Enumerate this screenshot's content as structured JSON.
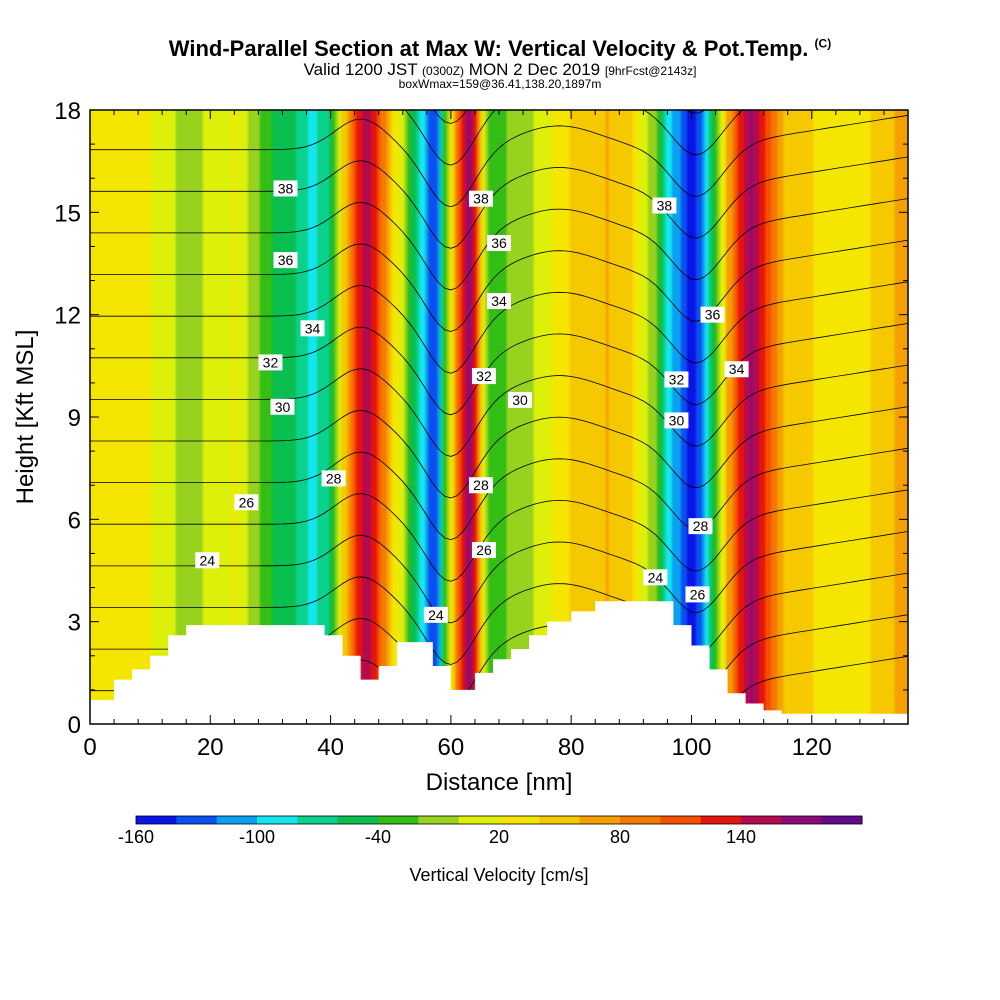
{
  "title": {
    "main": "Wind-Parallel Section at Max W: Vertical Velocity & Pot.Temp.",
    "copyright": "(C)",
    "valid_prefix": "Valid 1200 JST",
    "valid_utc": "(0300Z)",
    "valid_date": "MON 2 Dec 2019",
    "forecast": "[9hrFcst@2143z]",
    "boxinfo": "boxWmax=159@36.41,138.20,1897m"
  },
  "chart_data": {
    "type": "heatmap",
    "xlabel": "Distance [nm]",
    "ylabel": "Height [Kft MSL]",
    "xlim": [
      0,
      136
    ],
    "ylim": [
      0,
      18
    ],
    "x_ticks": [
      0,
      20,
      40,
      60,
      80,
      100,
      120
    ],
    "y_ticks": [
      0,
      3,
      6,
      9,
      12,
      15,
      18
    ],
    "colorbar": {
      "label": "Vertical Velocity [cm/s]",
      "tick_labels": [
        "-160",
        "-100",
        "-40",
        "20",
        "80",
        "140"
      ],
      "tick_values": [
        -160,
        -100,
        -40,
        20,
        80,
        140
      ],
      "levels": [
        -160,
        -140,
        -120,
        -100,
        -80,
        -60,
        -40,
        -20,
        0,
        20,
        40,
        60,
        80,
        100,
        120,
        140,
        160,
        180
      ],
      "colors": [
        "#0a14e6",
        "#0a50f0",
        "#0aa0f0",
        "#14e6f0",
        "#0ad28c",
        "#0abe50",
        "#32be14",
        "#96d21e",
        "#dcf00a",
        "#f5e600",
        "#f5c800",
        "#f5a000",
        "#f57800",
        "#f55000",
        "#e6140a",
        "#b40a50",
        "#8c0a78",
        "#640a8c"
      ]
    },
    "vertical_velocity_profile": {
      "x": [
        0,
        8,
        16,
        24,
        30,
        34,
        37,
        40,
        42,
        44,
        46,
        48,
        50,
        52,
        54,
        56,
        57,
        58,
        59,
        60,
        61,
        62,
        63,
        64,
        65,
        66,
        68,
        70,
        74,
        78,
        82,
        86,
        90,
        94,
        96,
        98,
        100,
        102,
        104,
        106,
        108,
        110,
        112,
        115,
        120,
        128,
        136
      ],
      "w": [
        20,
        30,
        -10,
        20,
        -40,
        -60,
        -90,
        -60,
        40,
        110,
        150,
        110,
        50,
        0,
        -60,
        -110,
        -140,
        -110,
        -40,
        20,
        80,
        120,
        160,
        120,
        50,
        -20,
        -40,
        -10,
        0,
        30,
        50,
        60,
        40,
        -20,
        -90,
        -120,
        -160,
        -110,
        -30,
        60,
        120,
        160,
        130,
        60,
        40,
        30,
        70
      ]
    },
    "terrain_kft": {
      "x": [
        0,
        3,
        4,
        7,
        10,
        13,
        16,
        33,
        39,
        42,
        45,
        48,
        51,
        54,
        57,
        60,
        62,
        64,
        67,
        70,
        73,
        76,
        80,
        84,
        88,
        97,
        100,
        103,
        106,
        109,
        112,
        115,
        136
      ],
      "h": [
        0.7,
        0.7,
        1.3,
        1.6,
        2.0,
        2.6,
        2.9,
        2.9,
        2.6,
        2.0,
        1.3,
        1.7,
        2.4,
        2.4,
        1.7,
        1.0,
        1.0,
        1.5,
        1.9,
        2.2,
        2.6,
        3.0,
        3.3,
        3.6,
        3.6,
        2.9,
        2.3,
        1.6,
        0.9,
        0.6,
        0.4,
        0.3,
        0.3
      ]
    },
    "theta_levels_K": [
      24,
      25,
      26,
      27,
      28,
      29,
      30,
      31,
      32,
      33,
      34,
      35,
      36,
      37,
      38,
      39
    ],
    "contour_labels": [
      {
        "text": "38",
        "x": 32.5,
        "y": 15.7
      },
      {
        "text": "36",
        "x": 32.5,
        "y": 13.6
      },
      {
        "text": "34",
        "x": 37,
        "y": 11.6
      },
      {
        "text": "32",
        "x": 30,
        "y": 10.6
      },
      {
        "text": "30",
        "x": 32,
        "y": 9.3
      },
      {
        "text": "28",
        "x": 40.5,
        "y": 7.2
      },
      {
        "text": "26",
        "x": 26,
        "y": 6.5
      },
      {
        "text": "24",
        "x": 19.5,
        "y": 4.8
      },
      {
        "text": "38",
        "x": 65,
        "y": 15.4
      },
      {
        "text": "36",
        "x": 68,
        "y": 14.1
      },
      {
        "text": "34",
        "x": 68,
        "y": 12.4
      },
      {
        "text": "32",
        "x": 65.5,
        "y": 10.2
      },
      {
        "text": "30",
        "x": 71.5,
        "y": 9.5
      },
      {
        "text": "28",
        "x": 65,
        "y": 7.0
      },
      {
        "text": "26",
        "x": 65.5,
        "y": 5.1
      },
      {
        "text": "24",
        "x": 57.5,
        "y": 3.2
      },
      {
        "text": "38",
        "x": 95.5,
        "y": 15.2
      },
      {
        "text": "36",
        "x": 103.5,
        "y": 12.0
      },
      {
        "text": "34",
        "x": 107.5,
        "y": 10.4
      },
      {
        "text": "32",
        "x": 97.5,
        "y": 10.1
      },
      {
        "text": "30",
        "x": 97.5,
        "y": 8.9
      },
      {
        "text": "28",
        "x": 101.5,
        "y": 5.8
      },
      {
        "text": "26",
        "x": 101,
        "y": 3.8
      },
      {
        "text": "24",
        "x": 94,
        "y": 4.3
      }
    ]
  }
}
